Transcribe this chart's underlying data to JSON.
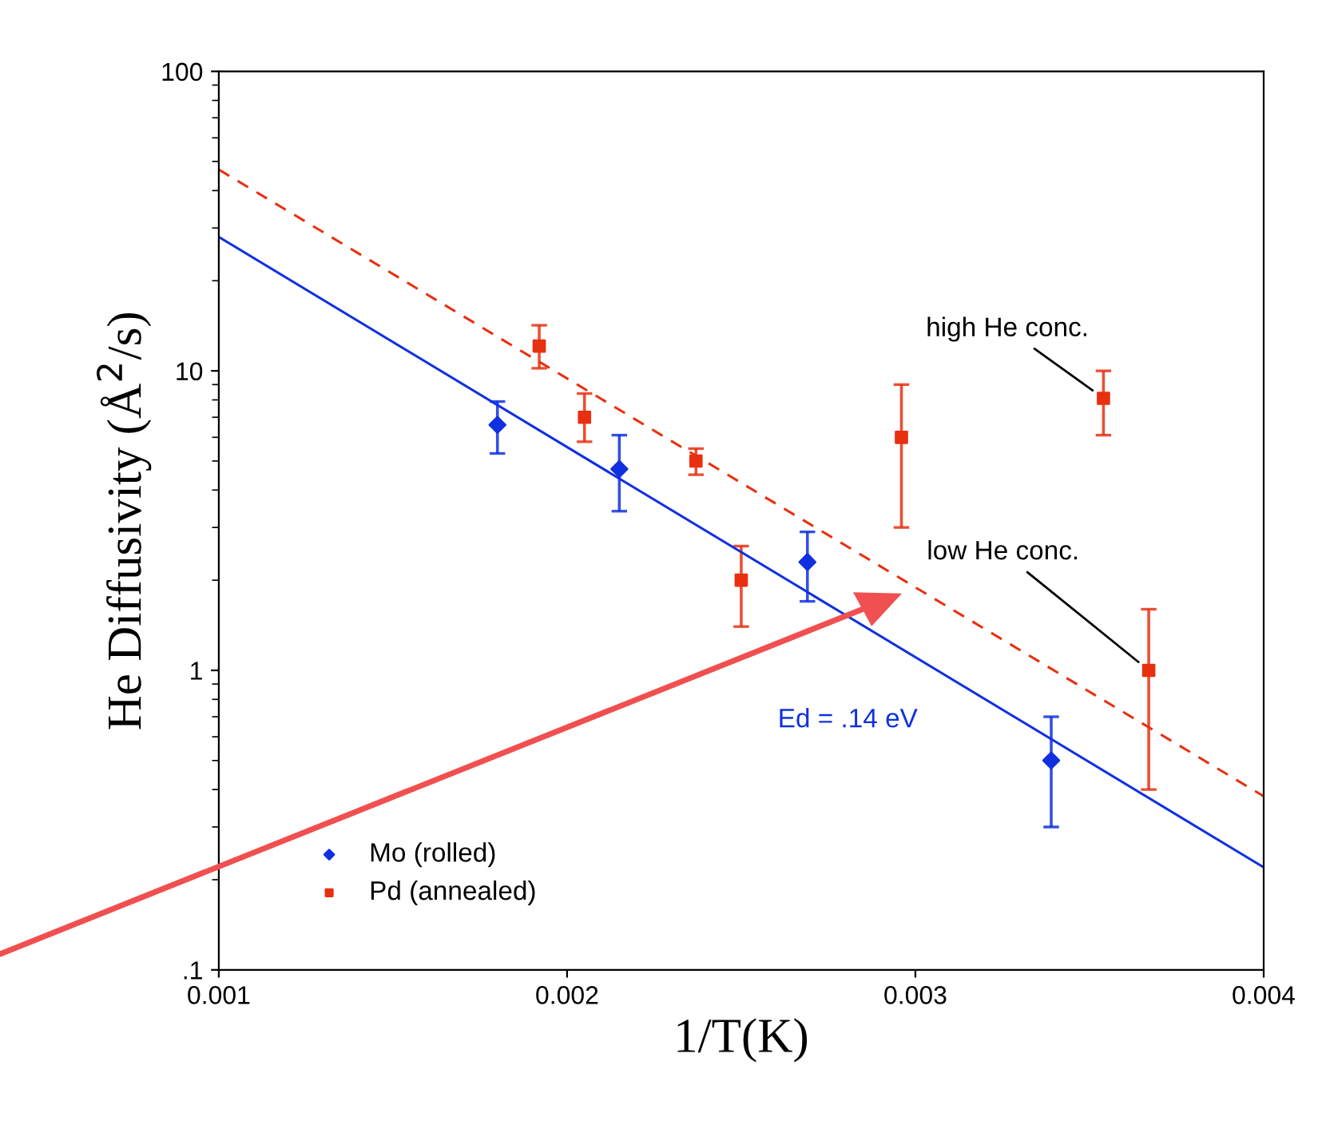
{
  "chart_data": {
    "type": "scatter",
    "xlabel": "1/T(K)",
    "ylabel": "He Diffusivity (Å$^{2}$/s)",
    "log": "y",
    "xlim": [
      0.001,
      0.004
    ],
    "xticks": [
      0.001,
      0.002,
      0.003,
      0.004
    ],
    "ylim": [
      0.1,
      100
    ],
    "yticks": [
      {
        "value": 0.1,
        "label": ".1"
      },
      1,
      10,
      100
    ],
    "grid": false,
    "legend": "bottom left",
    "series": [
      {
        "name": "Mo (rolled)",
        "color": "#1030e0",
        "marker": "diamond",
        "x": [
          0.0018,
          0.00215,
          0.00269,
          0.00339
        ],
        "values": [
          6.6,
          4.7,
          2.3,
          0.5
        ],
        "errors": [
          [
            5.3,
            7.9
          ],
          [
            3.4,
            6.1
          ],
          [
            1.7,
            2.9
          ],
          [
            0.3,
            0.7
          ]
        ]
      },
      {
        "name": "Pd (annealed)",
        "color": "#e83010",
        "marker": "square",
        "x": [
          0.00192,
          0.00205,
          0.00237,
          0.0025,
          0.00296,
          0.00354,
          0.00367
        ],
        "values": [
          12.1,
          7.0,
          5.0,
          2.0,
          6.0,
          8.1,
          1.0
        ],
        "errors": [
          [
            10.2,
            14.2
          ],
          [
            5.8,
            8.4
          ],
          [
            4.5,
            5.5
          ],
          [
            1.4,
            2.6
          ],
          [
            3.0,
            9.0
          ],
          [
            6.1,
            10
          ],
          [
            0.4,
            1.6
          ]
        ]
      },
      {
        "type": "line",
        "color": "#1030e0",
        "line_style": "solid",
        "x": [
          0.001,
          0.004
        ],
        "values": [
          28,
          0.22
        ]
      },
      {
        "type": "line",
        "color": "#e83010",
        "line_style": "dashed",
        "x": [
          0.001,
          0.004
        ],
        "values": [
          47,
          0.38
        ]
      }
    ],
    "annotations": [
      {
        "text": "high He conc.",
        "x": 0.00354,
        "y": 8.1
      },
      {
        "text": "low He conc.",
        "x": 0.00367,
        "y": 1.0
      },
      "Ed = .14 eV"
    ]
  }
}
